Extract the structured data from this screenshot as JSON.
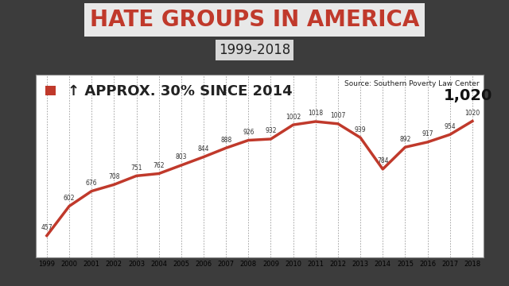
{
  "chart_data": {
    "type": "line",
    "title": "HATE GROUPS IN AMERICA",
    "subtitle": "1999-2018",
    "annotations": [
      "Source: Southern Poverty Law Center",
      "1,020"
    ],
    "categories": [
      "1999",
      "2000",
      "2001",
      "2002",
      "2003",
      "2004",
      "2005",
      "2006",
      "2007",
      "2008",
      "2009",
      "2010",
      "2011",
      "2012",
      "2013",
      "2014",
      "2015",
      "2016",
      "2017",
      "2018"
    ],
    "series": [
      {
        "name": "↑ APPROX. 30% SINCE 2014",
        "color": "#c0392b",
        "values": [
          457,
          602,
          676,
          708,
          751,
          762,
          803,
          844,
          888,
          926,
          932,
          1002,
          1018,
          1007,
          939,
          784,
          892,
          917,
          954,
          1020
        ]
      }
    ],
    "ylim": [
      350,
      1250
    ],
    "yticks": [],
    "grid": true,
    "data_labels": true,
    "legend": "upper left",
    "tick_labels": "x"
  }
}
